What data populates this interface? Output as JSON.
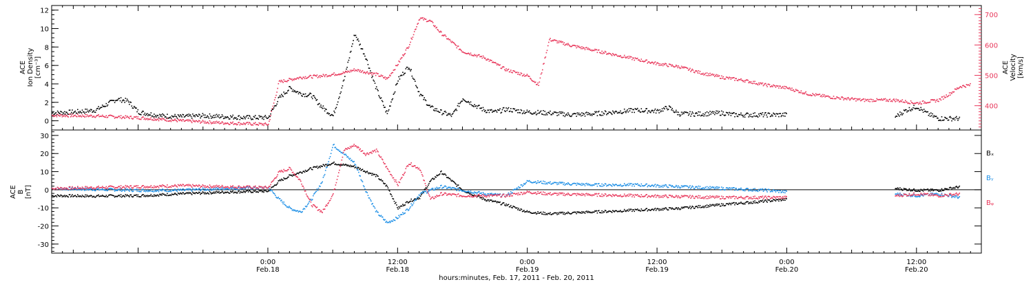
{
  "colors": {
    "axis": "#000000",
    "density": "#000000",
    "velocity": "#e8365a",
    "bx": "#000000",
    "by": "#1b8ee6",
    "bz": "#e8365a"
  },
  "x_axis": {
    "title": "hours:minutes, Feb. 17, 2011 - Feb. 20, 2011",
    "range_hours": [
      -20,
      66
    ],
    "ticks": [
      {
        "hour": 0,
        "time": "0:00",
        "day": "Feb.18"
      },
      {
        "hour": 12,
        "time": "12:00",
        "day": "Feb.18"
      },
      {
        "hour": 24,
        "time": "0:00",
        "day": "Feb.19"
      },
      {
        "hour": 36,
        "time": "12:00",
        "day": "Feb.19"
      },
      {
        "hour": 48,
        "time": "0:00",
        "day": "Feb.20"
      },
      {
        "hour": 60,
        "time": "12:00",
        "day": "Feb.20"
      }
    ]
  },
  "chart_data": [
    {
      "type": "scatter",
      "panel": "top",
      "y_left": {
        "label_lines": [
          "ACE",
          "Ion Density",
          "[cm⁻³]"
        ],
        "range": [
          -1,
          12.5
        ],
        "ticks": [
          0,
          2,
          4,
          6,
          8,
          10,
          12
        ]
      },
      "y_right": {
        "label_lines": [
          "ACE",
          "Velocity",
          "[km/s]"
        ],
        "range": [
          320,
          730
        ],
        "ticks": [
          400,
          500,
          600,
          700
        ]
      },
      "series": [
        {
          "key": "density",
          "axis": "left",
          "points": [
            [
              -20,
              0.9
            ],
            [
              -18,
              1.0
            ],
            [
              -16,
              1.2
            ],
            [
              -15,
              1.8
            ],
            [
              -14,
              2.4
            ],
            [
              -13,
              2.2
            ],
            [
              -12,
              1.0
            ],
            [
              -10,
              0.6
            ],
            [
              -8,
              0.5
            ],
            [
              -6,
              0.6
            ],
            [
              -4,
              0.5
            ],
            [
              -2,
              0.4
            ],
            [
              0,
              0.4
            ],
            [
              1,
              2.5
            ],
            [
              2,
              3.6
            ],
            [
              3,
              3.0
            ],
            [
              4,
              2.8
            ],
            [
              5,
              1.5
            ],
            [
              6,
              0.6
            ],
            [
              7,
              4.5
            ],
            [
              8,
              9.5
            ],
            [
              9,
              7.0
            ],
            [
              10,
              3.5
            ],
            [
              11,
              0.8
            ],
            [
              12,
              4.5
            ],
            [
              13,
              6.0
            ],
            [
              14,
              3.0
            ],
            [
              15,
              1.5
            ],
            [
              16,
              1.0
            ],
            [
              17,
              0.6
            ],
            [
              18,
              2.5
            ],
            [
              19,
              1.8
            ],
            [
              20,
              1.2
            ],
            [
              21,
              1.0
            ],
            [
              22,
              1.3
            ],
            [
              24,
              1.0
            ],
            [
              26,
              0.9
            ],
            [
              28,
              0.7
            ],
            [
              30,
              0.8
            ],
            [
              32,
              1.0
            ],
            [
              34,
              1.2
            ],
            [
              36,
              1.1
            ],
            [
              37,
              1.5
            ],
            [
              38,
              0.8
            ],
            [
              40,
              0.8
            ],
            [
              42,
              0.9
            ],
            [
              43,
              0.7
            ],
            [
              45,
              0.7
            ],
            [
              47,
              0.7
            ],
            [
              48,
              0.7
            ],
            [
              58,
              0.5
            ],
            [
              59,
              1.2
            ],
            [
              60,
              1.6
            ],
            [
              61,
              0.8
            ],
            [
              62,
              0.3
            ],
            [
              64,
              0.3
            ]
          ]
        },
        {
          "key": "velocity",
          "axis": "right",
          "points": [
            [
              -20,
              370
            ],
            [
              -16,
              368
            ],
            [
              -12,
              362
            ],
            [
              -8,
              352
            ],
            [
              -4,
              345
            ],
            [
              0,
              340
            ],
            [
              1,
              480
            ],
            [
              3,
              495
            ],
            [
              5,
              500
            ],
            [
              7,
              510
            ],
            [
              8,
              520
            ],
            [
              10,
              505
            ],
            [
              11,
              490
            ],
            [
              12,
              540
            ],
            [
              13,
              600
            ],
            [
              14,
              690
            ],
            [
              15,
              680
            ],
            [
              16,
              640
            ],
            [
              17,
              610
            ],
            [
              18,
              580
            ],
            [
              20,
              560
            ],
            [
              22,
              520
            ],
            [
              24,
              500
            ],
            [
              25,
              470
            ],
            [
              26,
              620
            ],
            [
              28,
              600
            ],
            [
              30,
              585
            ],
            [
              32,
              570
            ],
            [
              34,
              555
            ],
            [
              36,
              540
            ],
            [
              38,
              530
            ],
            [
              40,
              510
            ],
            [
              42,
              495
            ],
            [
              44,
              485
            ],
            [
              46,
              470
            ],
            [
              48,
              460
            ],
            [
              49,
              450
            ],
            [
              50,
              440
            ],
            [
              52,
              430
            ],
            [
              55,
              420
            ],
            [
              58,
              420
            ],
            [
              60,
              410
            ],
            [
              62,
              420
            ],
            [
              63,
              440
            ],
            [
              64,
              465
            ],
            [
              65,
              470
            ]
          ]
        }
      ]
    },
    {
      "type": "scatter",
      "panel": "bottom",
      "y_left": {
        "label_lines": [
          "ACE",
          "B",
          "[nT]"
        ],
        "range": [
          -35,
          33
        ],
        "ticks": [
          -30,
          -20,
          -10,
          0,
          10,
          20,
          30
        ]
      },
      "legend": [
        "Bₓ",
        "Bᵧ",
        "Bᵩ"
      ],
      "series": [
        {
          "key": "bx",
          "points": [
            [
              -20,
              -3
            ],
            [
              -16,
              -3.2
            ],
            [
              -12,
              -3
            ],
            [
              -8,
              -2
            ],
            [
              -4,
              -1
            ],
            [
              0,
              -0.5
            ],
            [
              1,
              5
            ],
            [
              2,
              8
            ],
            [
              3,
              10
            ],
            [
              4,
              12
            ],
            [
              6,
              15
            ],
            [
              8,
              13
            ],
            [
              10,
              8
            ],
            [
              11,
              2
            ],
            [
              12,
              -10
            ],
            [
              13,
              -6
            ],
            [
              14,
              -4
            ],
            [
              15,
              5
            ],
            [
              16,
              10
            ],
            [
              17,
              5
            ],
            [
              18,
              0
            ],
            [
              20,
              -5
            ],
            [
              22,
              -8
            ],
            [
              24,
              -12
            ],
            [
              26,
              -13
            ],
            [
              30,
              -12
            ],
            [
              34,
              -11
            ],
            [
              38,
              -10
            ],
            [
              42,
              -8
            ],
            [
              46,
              -6
            ],
            [
              48,
              -5
            ],
            [
              58,
              1
            ],
            [
              60,
              0
            ],
            [
              62,
              0
            ],
            [
              64,
              2
            ]
          ]
        },
        {
          "key": "by",
          "points": [
            [
              -20,
              1
            ],
            [
              -16,
              0.5
            ],
            [
              -12,
              0
            ],
            [
              -8,
              0
            ],
            [
              -4,
              1
            ],
            [
              0,
              1.5
            ],
            [
              1,
              -5
            ],
            [
              2,
              -10
            ],
            [
              3,
              -12
            ],
            [
              4,
              -5
            ],
            [
              5,
              5
            ],
            [
              6,
              25
            ],
            [
              7,
              20
            ],
            [
              8,
              15
            ],
            [
              9,
              0
            ],
            [
              10,
              -12
            ],
            [
              11,
              -18
            ],
            [
              12,
              -15
            ],
            [
              13,
              -10
            ],
            [
              14,
              -2
            ],
            [
              16,
              2
            ],
            [
              18,
              0
            ],
            [
              20,
              -2
            ],
            [
              22,
              -3
            ],
            [
              24,
              5
            ],
            [
              26,
              4
            ],
            [
              30,
              3
            ],
            [
              34,
              3
            ],
            [
              38,
              2
            ],
            [
              42,
              1
            ],
            [
              46,
              0
            ],
            [
              48,
              -1
            ],
            [
              58,
              -2
            ],
            [
              60,
              -3
            ],
            [
              62,
              -2
            ],
            [
              64,
              -4
            ]
          ]
        },
        {
          "key": "bz",
          "points": [
            [
              -20,
              1
            ],
            [
              -16,
              1.5
            ],
            [
              -12,
              2
            ],
            [
              -8,
              2.5
            ],
            [
              -4,
              2
            ],
            [
              0,
              1.5
            ],
            [
              1,
              10
            ],
            [
              2,
              12
            ],
            [
              3,
              5
            ],
            [
              4,
              -8
            ],
            [
              5,
              -12
            ],
            [
              6,
              -2
            ],
            [
              7,
              22
            ],
            [
              8,
              25
            ],
            [
              9,
              20
            ],
            [
              10,
              22
            ],
            [
              11,
              12
            ],
            [
              12,
              3
            ],
            [
              13,
              15
            ],
            [
              14,
              12
            ],
            [
              15,
              -5
            ],
            [
              16,
              -2
            ],
            [
              18,
              -3
            ],
            [
              20,
              -3
            ],
            [
              22,
              -3
            ],
            [
              24,
              -1
            ],
            [
              26,
              -2
            ],
            [
              30,
              -2.5
            ],
            [
              34,
              -3
            ],
            [
              38,
              -3.5
            ],
            [
              42,
              -4
            ],
            [
              46,
              -4
            ],
            [
              48,
              -4
            ],
            [
              58,
              -3
            ],
            [
              60,
              -2
            ],
            [
              62,
              -3
            ],
            [
              64,
              -2
            ]
          ]
        }
      ]
    }
  ]
}
